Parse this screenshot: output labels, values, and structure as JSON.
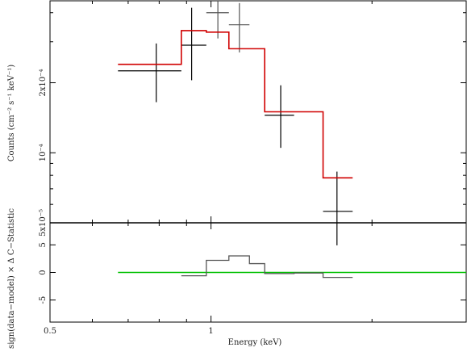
{
  "chart_data": [
    {
      "type": "line",
      "panel": "spectrum",
      "ylabel": "Counts (cm⁻² s⁻¹ keV⁻¹)",
      "xscale": "log",
      "yscale": "log",
      "xlim": [
        0.5,
        3.0
      ],
      "ylim": [
        5e-05,
        0.00045
      ],
      "yticks": [
        {
          "value": 0.0002,
          "label": "2x10⁻⁴"
        },
        {
          "value": 0.0001,
          "label": "10⁻⁴"
        },
        {
          "value": 5e-05,
          "label": "5x10⁻⁵"
        }
      ],
      "series": [
        {
          "kind": "data-black",
          "color": "#000000",
          "points": [
            {
              "x": 0.79,
              "xlo": 0.67,
              "xhi": 0.88,
              "y": 0.000225,
              "ylo": 0.000165,
              "yhi": 0.000295
            },
            {
              "x": 0.92,
              "xlo": 0.88,
              "xhi": 0.98,
              "y": 0.00029,
              "ylo": 0.000205,
              "yhi": 0.00042
            },
            {
              "x": 1.35,
              "xlo": 1.26,
              "xhi": 1.43,
              "y": 0.000145,
              "ylo": 0.000105,
              "yhi": 0.000195
            },
            {
              "x": 1.72,
              "xlo": 1.62,
              "xhi": 1.84,
              "y": 5.6e-05,
              "ylo": 4e-05,
              "yhi": 8.3e-05
            }
          ]
        },
        {
          "kind": "data-grey",
          "color": "#555555",
          "points": [
            {
              "x": 1.03,
              "xlo": 0.98,
              "xhi": 1.08,
              "y": 0.0004,
              "ylo": 0.00031,
              "yhi": 0.00046
            },
            {
              "x": 1.13,
              "xlo": 1.08,
              "xhi": 1.18,
              "y": 0.000355,
              "ylo": 0.00027,
              "yhi": 0.00044
            }
          ]
        },
        {
          "kind": "model-red",
          "color": "#d00000",
          "steps": [
            {
              "xlo": 0.67,
              "xhi": 0.88,
              "y": 0.00024
            },
            {
              "xlo": 0.88,
              "xhi": 0.98,
              "y": 0.000335
            },
            {
              "xlo": 0.98,
              "xhi": 1.08,
              "y": 0.00033
            },
            {
              "xlo": 1.08,
              "xhi": 1.26,
              "y": 0.00028
            },
            {
              "xlo": 1.26,
              "xhi": 1.62,
              "y": 0.00015
            },
            {
              "xlo": 1.62,
              "xhi": 1.84,
              "y": 7.8e-05
            }
          ]
        }
      ]
    },
    {
      "type": "line",
      "panel": "residuals",
      "xlabel": "Energy (keV)",
      "ylabel": "sign(data−model) × Δ C−Statistic",
      "xscale": "log",
      "xlim": [
        0.5,
        3.0
      ],
      "ylim": [
        -9,
        9
      ],
      "yticks": [
        -5,
        0,
        5
      ],
      "xticks": [
        {
          "value": 0.5,
          "label": "0.5"
        },
        {
          "value": 1,
          "label": "1"
        }
      ],
      "zero_line_color": "#00c000",
      "series": [
        {
          "kind": "resid-steps",
          "color": "#555555",
          "steps": [
            {
              "xlo": 0.88,
              "xhi": 0.98,
              "y": -0.6
            },
            {
              "xlo": 0.98,
              "xhi": 1.08,
              "y": 2.2
            },
            {
              "xlo": 1.08,
              "xhi": 1.18,
              "y": 3.0
            },
            {
              "xlo": 1.18,
              "xhi": 1.26,
              "y": 1.6
            },
            {
              "xlo": 1.26,
              "xhi": 1.43,
              "y": -0.2
            },
            {
              "xlo": 1.43,
              "xhi": 1.62,
              "y": -0.1
            },
            {
              "xlo": 1.62,
              "xhi": 1.84,
              "y": -0.9
            }
          ]
        }
      ]
    }
  ]
}
